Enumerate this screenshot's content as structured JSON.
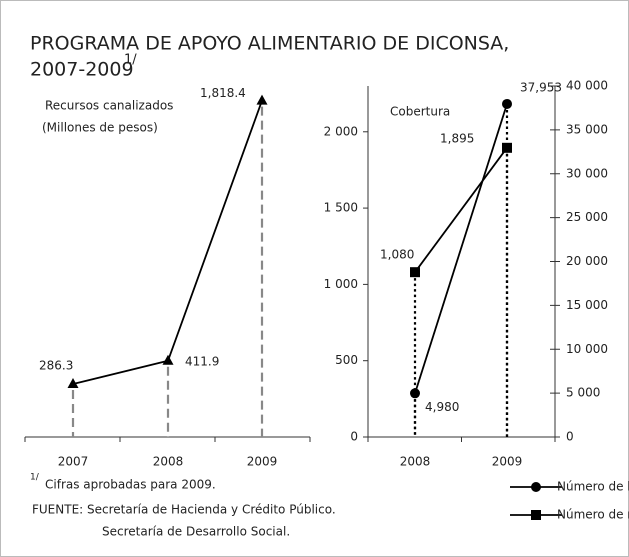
{
  "title": [
    "PROGRAMA DE APOYO ALIMENTARIO DE DICONSA,",
    "2007-2009"
  ],
  "title_note": "1/",
  "footnote": {
    "mark": "1/",
    "text": "Cifras aprobadas para 2009."
  },
  "source": [
    "FUENTE: Secretaría de Hacienda y Crédito Público.",
    "Secretaría de Desarrollo Social."
  ],
  "chart_data": [
    {
      "type": "line",
      "label": [
        "Recursos canalizados",
        "(Millones de pesos)"
      ],
      "categories": [
        "2007",
        "2008",
        "2009"
      ],
      "values": [
        286.3,
        411.9,
        1818.4
      ],
      "value_labels": [
        "286.3",
        "411.9",
        "1,818.4"
      ],
      "color": "#000000",
      "marker": "triangle",
      "ylim": [
        0,
        2000
      ]
    },
    {
      "type": "line",
      "label": "Cobertura",
      "categories": [
        "2008",
        "2009"
      ],
      "series": [
        {
          "name": "Número de localidades",
          "color": "#000000",
          "marker": "circle",
          "axis": "y2",
          "values": [
            4980,
            37953
          ],
          "value_labels": [
            "4,980",
            "37,953"
          ]
        },
        {
          "name": "Número de municipios",
          "color": "#000000",
          "marker": "square",
          "values": [
            1080,
            1895
          ],
          "value_labels": [
            "1,080",
            "1,895"
          ]
        }
      ],
      "ylim": [
        0,
        2300
      ],
      "yticks": [
        0,
        500,
        {
          "value": 1000,
          "label": "1 000"
        },
        {
          "value": 1500,
          "label": "1 500"
        },
        {
          "value": 2000,
          "label": "2 000"
        }
      ],
      "y2lim": [
        0,
        40000
      ],
      "y2ticks": [
        0,
        {
          "value": 5000,
          "label": "5 000"
        },
        {
          "value": 10000,
          "label": "10 000"
        },
        {
          "value": 15000,
          "label": "15 000"
        },
        {
          "value": 20000,
          "label": "20 000"
        },
        {
          "value": 25000,
          "label": "25 000"
        },
        {
          "value": 30000,
          "label": "30 000"
        },
        {
          "value": 35000,
          "label": "35 000"
        },
        {
          "value": 40000,
          "label": "40 000"
        }
      ]
    }
  ]
}
